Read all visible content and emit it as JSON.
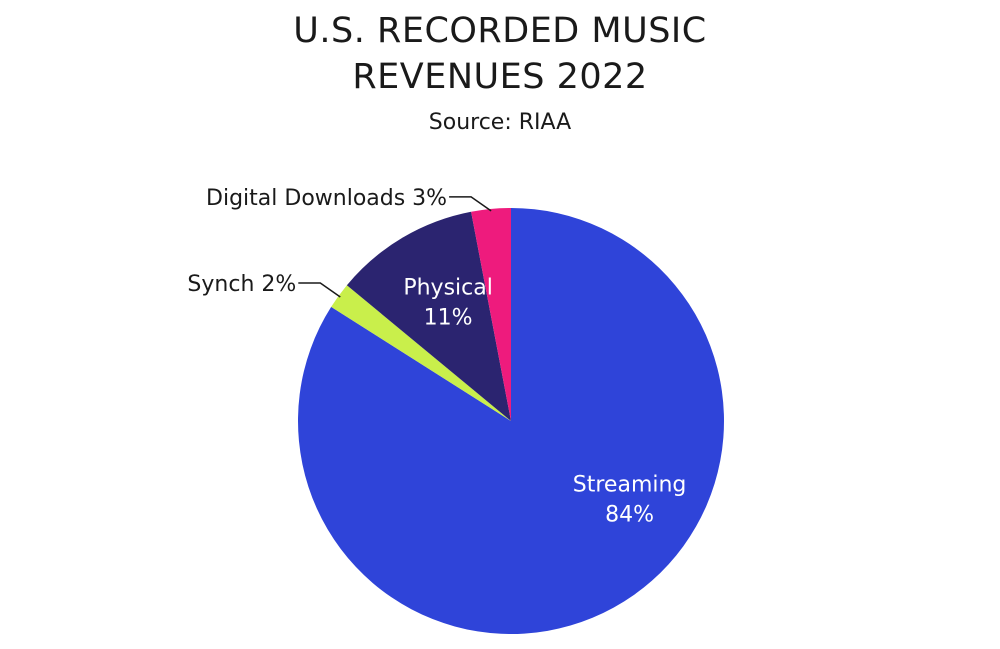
{
  "title_lines": [
    "U.S. RECORDED MUSIC",
    "REVENUES 2022"
  ],
  "subtitle": "Source: RIAA",
  "chart_data": {
    "type": "pie",
    "title": "U.S. RECORDED MUSIC REVENUES 2022",
    "subtitle": "Source: RIAA",
    "slices": [
      {
        "label": "Streaming",
        "value": 84,
        "value_label": "84%",
        "color": "#2f44d9",
        "label_position": "inside"
      },
      {
        "label": "Synch",
        "value": 2,
        "value_label": "2%",
        "color": "#c9ef4b",
        "label_position": "outside"
      },
      {
        "label": "Physical",
        "value": 11,
        "value_label": "11%",
        "color": "#2b2470",
        "label_position": "inside"
      },
      {
        "label": "Digital Downloads",
        "value": 3,
        "value_label": "3%",
        "color": "#ee1b7d",
        "label_position": "outside"
      }
    ],
    "start_angle": "12 o'clock",
    "direction": "clockwise"
  }
}
